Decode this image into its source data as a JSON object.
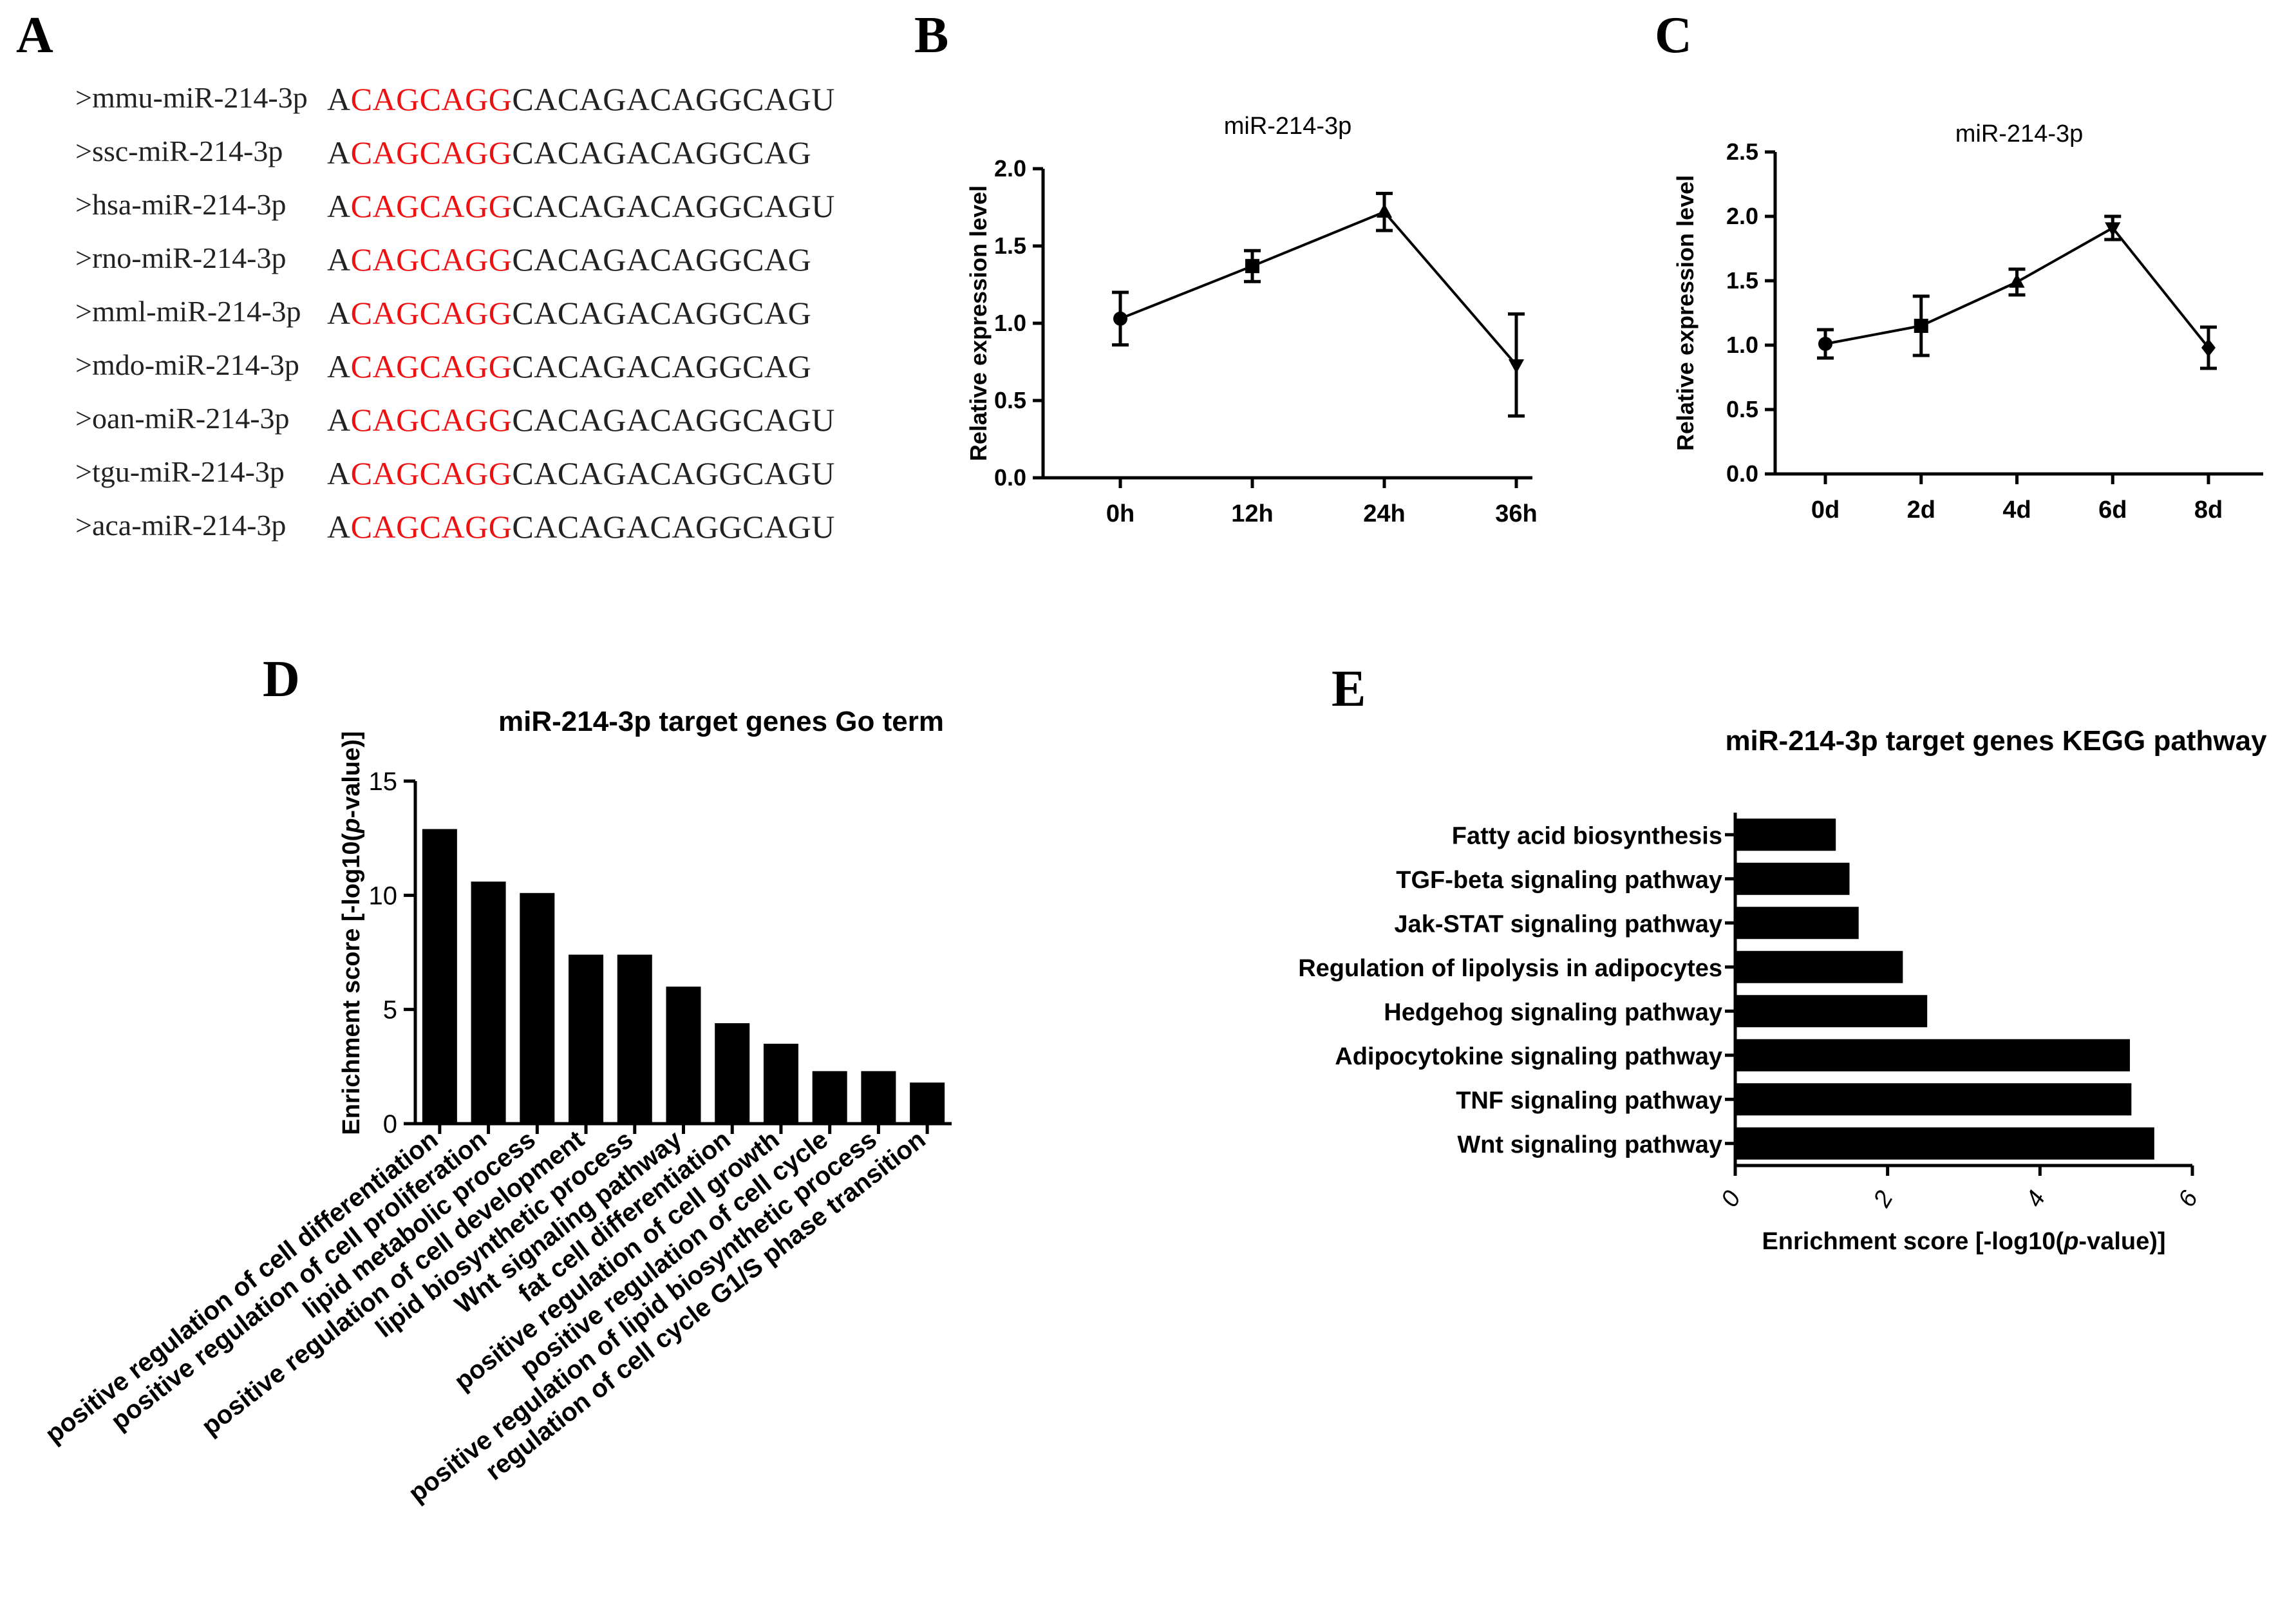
{
  "panels": {
    "A": "A",
    "B": "B",
    "C": "C",
    "D": "D",
    "E": "E"
  },
  "sequences": [
    {
      "name": ">mmu-miR-214-3p",
      "pre": "A",
      "seed": "CAGCAGG",
      "post": "CACAGACAGGCAGU"
    },
    {
      "name": ">ssc-miR-214-3p",
      "pre": "A",
      "seed": "CAGCAGG",
      "post": "CACAGACAGGCAG"
    },
    {
      "name": ">hsa-miR-214-3p",
      "pre": "A",
      "seed": "CAGCAGG",
      "post": "CACAGACAGGCAGU"
    },
    {
      "name": ">rno-miR-214-3p",
      "pre": "A",
      "seed": "CAGCAGG",
      "post": "CACAGACAGGCAG"
    },
    {
      "name": ">mml-miR-214-3p",
      "pre": "A",
      "seed": "CAGCAGG",
      "post": "CACAGACAGGCAG"
    },
    {
      "name": ">mdo-miR-214-3p",
      "pre": "A",
      "seed": "CAGCAGG",
      "post": "CACAGACAGGCAG"
    },
    {
      "name": ">oan-miR-214-3p",
      "pre": "A",
      "seed": "CAGCAGG",
      "post": "CACAGACAGGCAGU"
    },
    {
      "name": ">tgu-miR-214-3p",
      "pre": "A",
      "seed": "CAGCAGG",
      "post": "CACAGACAGGCAGU"
    },
    {
      "name": ">aca-miR-214-3p",
      "pre": "A",
      "seed": "CAGCAGG",
      "post": "CACAGACAGGCAGU"
    }
  ],
  "chart_data": [
    {
      "id": "B",
      "type": "line",
      "title": "miR-214-3p",
      "ylabel": "Relative expression level",
      "xlabel": "",
      "categories": [
        "0h",
        "12h",
        "24h",
        "36h"
      ],
      "values": [
        1.03,
        1.37,
        1.72,
        0.73
      ],
      "errors": [
        0.17,
        0.1,
        0.12,
        0.33
      ],
      "markers": [
        "circle",
        "square",
        "triangle",
        "triangle-down"
      ],
      "ylim": [
        0,
        2.0
      ],
      "yticks": [
        0.0,
        0.5,
        1.0,
        1.5,
        2.0
      ],
      "ytick_labels": [
        "0.0",
        "0.5",
        "1.0",
        "1.5",
        "2.0"
      ]
    },
    {
      "id": "C",
      "type": "line",
      "title": "miR-214-3p",
      "ylabel": "Relative expression level",
      "xlabel": "",
      "categories": [
        "0d",
        "2d",
        "4d",
        "6d",
        "8d"
      ],
      "values": [
        1.01,
        1.15,
        1.49,
        1.91,
        0.98
      ],
      "errors": [
        0.11,
        0.23,
        0.1,
        0.09,
        0.16
      ],
      "markers": [
        "circle",
        "square",
        "triangle",
        "triangle-down",
        "diamond"
      ],
      "ylim": [
        0,
        2.5
      ],
      "yticks": [
        0.0,
        0.5,
        1.0,
        1.5,
        2.0,
        2.5
      ],
      "ytick_labels": [
        "0.0",
        "0.5",
        "1.0",
        "1.5",
        "2.0",
        "2.5"
      ]
    },
    {
      "id": "D",
      "type": "bar",
      "title": "miR-214-3p target genes Go term",
      "ylabel_prefix": "Enrichment  score [-log10(",
      "ylabel_italic": "p",
      "ylabel_suffix": "-value)]",
      "xlabel": "",
      "categories": [
        "positive regulation of cell differentiation",
        "positive regulation of cell proliferation",
        "lipid metabolic process",
        "positive regulation of cell development",
        "lipid biosynthetic process",
        "Wnt signaling pathway",
        "fat cell differentiation",
        "positive regulation of cell growth",
        "positive regulation of cell cycle",
        "positive regulation of lipid biosynthetic process",
        "regulation of cell cycle G1/S phase transition"
      ],
      "values": [
        12.9,
        10.6,
        10.1,
        7.4,
        7.4,
        6.0,
        4.4,
        3.5,
        2.3,
        2.3,
        1.8
      ],
      "ylim": [
        0,
        15
      ],
      "yticks": [
        0,
        5,
        10,
        15
      ],
      "ytick_labels": [
        "0",
        "5",
        "10",
        "15"
      ]
    },
    {
      "id": "E",
      "type": "bar",
      "orientation": "horizontal",
      "title": "miR-214-3p target genes KEGG pathway",
      "xlabel_prefix": "Enrichment  score [-log10(",
      "xlabel_italic": "p",
      "xlabel_suffix": "-value)]",
      "ylabel": "",
      "categories": [
        "Fatty acid biosynthesis",
        "TGF-beta signaling pathway",
        "Jak-STAT signaling pathway",
        "Regulation of lipolysis in adipocytes",
        "Hedgehog signaling pathway",
        "Adipocytokine signaling pathway",
        "TNF signaling pathway",
        "Wnt signaling pathway"
      ],
      "values": [
        1.32,
        1.5,
        1.62,
        2.2,
        2.52,
        5.18,
        5.2,
        5.5
      ],
      "xlim": [
        0,
        6
      ],
      "xticks": [
        0,
        2,
        4,
        6
      ],
      "xtick_labels": [
        "0",
        "2",
        "4",
        "6"
      ]
    }
  ],
  "colors": {
    "seed": "#ee1111",
    "bar": "#000000",
    "line": "#000000"
  }
}
